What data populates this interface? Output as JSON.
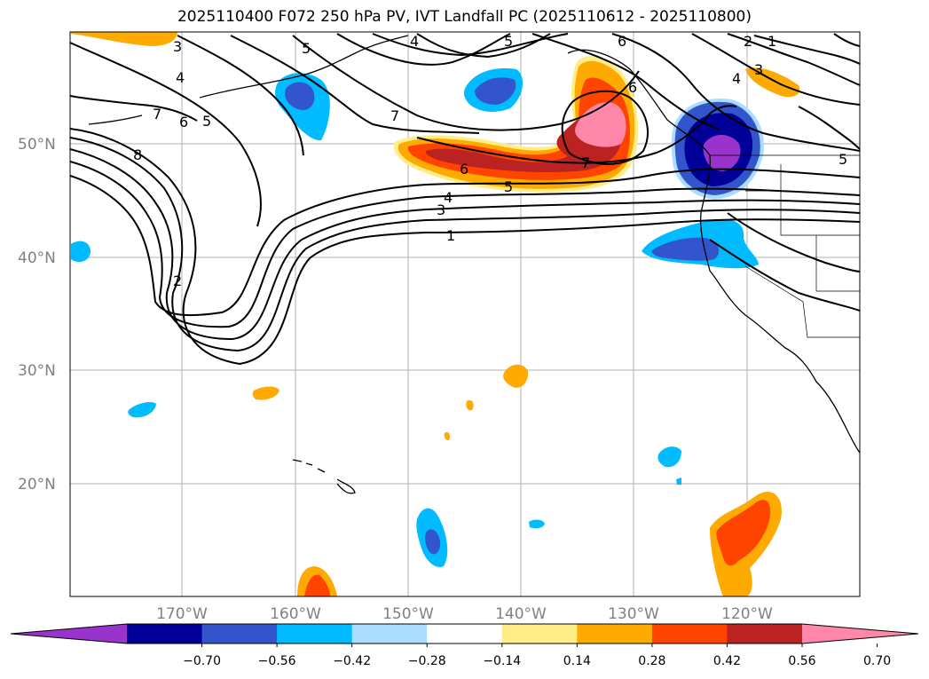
{
  "title": "2025110400 F072 250 hPa PV, IVT Landfall PC (2025110612 - 2025110800)",
  "lat_ticks": [
    "50°N",
    "40°N",
    "30°N",
    "20°N"
  ],
  "lon_ticks": [
    "170°W",
    "160°W",
    "150°W",
    "140°W",
    "130°W",
    "120°W"
  ],
  "colorbar": {
    "colors": [
      "#9933cc",
      "#000099",
      "#3355cc",
      "#00bbff",
      "#aaddff",
      "#ffffff",
      "#ffee88",
      "#ffaa00",
      "#ff4400",
      "#bb2222",
      "#ff88aa"
    ],
    "tick_labels": [
      "−0.70",
      "−0.56",
      "−0.42",
      "−0.28",
      "−0.14",
      "0.14",
      "0.28",
      "0.42",
      "0.56",
      "0.70"
    ]
  },
  "contour_labels": [
    "1",
    "2",
    "3",
    "4",
    "5",
    "6",
    "7",
    "8",
    "3",
    "4",
    "5",
    "6",
    "7",
    "5",
    "6",
    "5",
    "4",
    "3",
    "2",
    "1",
    "5",
    "6",
    "7",
    "4"
  ]
}
